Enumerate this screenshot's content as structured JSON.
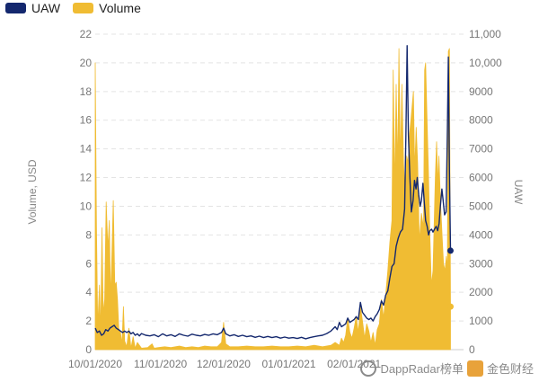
{
  "legend": {
    "uaw_label": "UAW",
    "volume_label": "Volume",
    "uaw_color": "#14286e",
    "volume_color": "#f0bc33"
  },
  "watermark": {
    "text": "DappRadar榜单",
    "brand": "金色财经"
  },
  "chart_data": {
    "type": "line",
    "title": "",
    "xlabel": "",
    "ylabel_left": "Volume, USD",
    "ylabel_right": "UAW",
    "y_left_range": [
      0,
      22
    ],
    "y_left_ticks": [
      0,
      2,
      4,
      6,
      8,
      10,
      12,
      14,
      16,
      18,
      20,
      22
    ],
    "y_right_range": [
      0,
      11000
    ],
    "y_right_ticks": [
      "0",
      "1000",
      "2000",
      "3000",
      "4000",
      "5000",
      "6000",
      "7000",
      "8000",
      "9000",
      "10,000",
      "11,000"
    ],
    "x_ticks": [
      {
        "day": 0,
        "label": "10/01/2020"
      },
      {
        "day": 31,
        "label": "11/01/2020"
      },
      {
        "day": 61,
        "label": "12/01/2020"
      },
      {
        "day": 92,
        "label": "01/01/2021"
      },
      {
        "day": 123,
        "label": "02/01/2021"
      }
    ],
    "x_range": [
      0,
      175
    ],
    "grid": true,
    "legend_position": "top-left",
    "series": [
      {
        "name": "Volume",
        "axis": "left",
        "style": "area",
        "color": "#f0bc33",
        "points": [
          [
            0,
            20.0
          ],
          [
            0.6,
            8.5
          ],
          [
            1.2,
            1.5
          ],
          [
            2,
            4.5
          ],
          [
            2.6,
            1.0
          ],
          [
            3.2,
            8.5
          ],
          [
            3.8,
            2.5
          ],
          [
            4.5,
            3.5
          ],
          [
            5.2,
            10.3
          ],
          [
            6,
            7.0
          ],
          [
            6.7,
            9.0
          ],
          [
            7.3,
            3.5
          ],
          [
            7.9,
            6.5
          ],
          [
            8.6,
            10.4
          ],
          [
            9.3,
            4.5
          ],
          [
            10,
            4.7
          ],
          [
            10.6,
            3.5
          ],
          [
            11.2,
            1.5
          ],
          [
            12,
            1.2
          ],
          [
            12.7,
            0.4
          ],
          [
            13.4,
            3.0
          ],
          [
            14,
            0.6
          ],
          [
            15,
            0.2
          ],
          [
            16,
            1.5
          ],
          [
            17,
            0.1
          ],
          [
            18,
            0.9
          ],
          [
            19,
            0.1
          ],
          [
            20,
            0.5
          ],
          [
            22,
            0.1
          ],
          [
            25,
            0.15
          ],
          [
            27,
            0.4
          ],
          [
            28,
            0.1
          ],
          [
            30,
            0.15
          ],
          [
            33,
            0.2
          ],
          [
            36,
            0.15
          ],
          [
            40,
            0.25
          ],
          [
            43,
            0.15
          ],
          [
            46,
            0.2
          ],
          [
            49,
            0.15
          ],
          [
            52,
            0.25
          ],
          [
            55,
            0.2
          ],
          [
            58,
            0.2
          ],
          [
            60,
            0.5
          ],
          [
            61,
            1.9
          ],
          [
            62,
            0.4
          ],
          [
            64,
            0.2
          ],
          [
            68,
            0.2
          ],
          [
            72,
            0.25
          ],
          [
            76,
            0.2
          ],
          [
            80,
            0.2
          ],
          [
            84,
            0.25
          ],
          [
            88,
            0.2
          ],
          [
            92,
            0.2
          ],
          [
            96,
            0.25
          ],
          [
            100,
            0.2
          ],
          [
            104,
            0.3
          ],
          [
            108,
            0.2
          ],
          [
            112,
            0.3
          ],
          [
            114,
            0.5
          ],
          [
            116,
            0.3
          ],
          [
            117,
            0.8
          ],
          [
            118,
            0.5
          ],
          [
            119,
            1.0
          ],
          [
            120,
            2.2
          ],
          [
            121,
            1.2
          ],
          [
            122,
            0.8
          ],
          [
            123,
            1.5
          ],
          [
            124,
            2.3
          ],
          [
            125,
            1.2
          ],
          [
            126,
            3.0
          ],
          [
            127,
            2.0
          ],
          [
            128,
            0.8
          ],
          [
            129,
            1.8
          ],
          [
            130,
            1.3
          ],
          [
            131,
            0.5
          ],
          [
            132,
            1.2
          ],
          [
            133,
            0.3
          ],
          [
            134,
            1.4
          ],
          [
            135,
            1.8
          ],
          [
            136,
            3.5
          ],
          [
            137,
            2.2
          ],
          [
            138,
            3.8
          ],
          [
            139,
            5.5
          ],
          [
            140,
            7.5
          ],
          [
            141,
            9.0
          ],
          [
            141.6,
            19.5
          ],
          [
            142.3,
            11.0
          ],
          [
            143,
            18.5
          ],
          [
            143.7,
            12.5
          ],
          [
            144.3,
            21.0
          ],
          [
            145,
            13.0
          ],
          [
            145.7,
            18.5
          ],
          [
            146.5,
            13.0
          ],
          [
            147.3,
            10.5
          ],
          [
            148,
            13.5
          ],
          [
            148.7,
            13.0
          ],
          [
            149.3,
            15.0
          ],
          [
            150,
            16.0
          ],
          [
            150.6,
            17.0
          ],
          [
            151.2,
            18.0
          ],
          [
            151.8,
            12.5
          ],
          [
            152.5,
            15.5
          ],
          [
            153.2,
            13.0
          ],
          [
            154,
            7.5
          ],
          [
            155,
            9.5
          ],
          [
            156,
            8.5
          ],
          [
            156.5,
            19.5
          ],
          [
            157,
            20.0
          ],
          [
            157.6,
            16.5
          ],
          [
            158.3,
            12.5
          ],
          [
            159,
            8.0
          ],
          [
            159.7,
            4.5
          ],
          [
            160.5,
            5.5
          ],
          [
            161.1,
            9.0
          ],
          [
            161.6,
            12.0
          ],
          [
            162.2,
            14.5
          ],
          [
            162.8,
            11.5
          ],
          [
            163.3,
            13.5
          ],
          [
            164,
            10.5
          ],
          [
            164.8,
            8.0
          ],
          [
            165.5,
            6.0
          ],
          [
            166.2,
            5.5
          ],
          [
            166.8,
            6.5
          ],
          [
            167.3,
            5.5
          ],
          [
            167.8,
            20.8
          ],
          [
            168.3,
            21.0
          ],
          [
            168.8,
            3.0
          ]
        ]
      },
      {
        "name": "UAW",
        "axis": "right",
        "style": "line",
        "color": "#14286e",
        "points": [
          [
            0,
            750
          ],
          [
            1,
            600
          ],
          [
            2,
            650
          ],
          [
            3,
            500
          ],
          [
            4,
            550
          ],
          [
            5,
            700
          ],
          [
            6,
            650
          ],
          [
            7,
            750
          ],
          [
            8,
            800
          ],
          [
            9,
            850
          ],
          [
            10,
            750
          ],
          [
            11,
            700
          ],
          [
            12,
            650
          ],
          [
            13,
            600
          ],
          [
            14,
            650
          ],
          [
            15,
            600
          ],
          [
            16,
            650
          ],
          [
            17,
            550
          ],
          [
            18,
            600
          ],
          [
            19,
            500
          ],
          [
            20,
            550
          ],
          [
            21,
            480
          ],
          [
            22,
            560
          ],
          [
            24,
            500
          ],
          [
            26,
            480
          ],
          [
            28,
            520
          ],
          [
            30,
            450
          ],
          [
            32,
            550
          ],
          [
            34,
            480
          ],
          [
            36,
            520
          ],
          [
            38,
            460
          ],
          [
            40,
            550
          ],
          [
            42,
            500
          ],
          [
            44,
            470
          ],
          [
            46,
            540
          ],
          [
            48,
            500
          ],
          [
            50,
            480
          ],
          [
            52,
            530
          ],
          [
            54,
            500
          ],
          [
            56,
            550
          ],
          [
            58,
            520
          ],
          [
            60,
            600
          ],
          [
            61,
            750
          ],
          [
            62,
            550
          ],
          [
            64,
            480
          ],
          [
            66,
            520
          ],
          [
            68,
            460
          ],
          [
            70,
            500
          ],
          [
            72,
            450
          ],
          [
            74,
            480
          ],
          [
            76,
            430
          ],
          [
            78,
            470
          ],
          [
            80,
            420
          ],
          [
            82,
            460
          ],
          [
            84,
            420
          ],
          [
            86,
            450
          ],
          [
            88,
            400
          ],
          [
            90,
            440
          ],
          [
            92,
            400
          ],
          [
            94,
            420
          ],
          [
            96,
            390
          ],
          [
            98,
            430
          ],
          [
            100,
            380
          ],
          [
            102,
            420
          ],
          [
            104,
            450
          ],
          [
            106,
            480
          ],
          [
            108,
            500
          ],
          [
            110,
            560
          ],
          [
            112,
            650
          ],
          [
            114,
            800
          ],
          [
            115,
            700
          ],
          [
            116,
            950
          ],
          [
            117,
            800
          ],
          [
            118,
            850
          ],
          [
            119,
            900
          ],
          [
            120,
            1100
          ],
          [
            121,
            950
          ],
          [
            122,
            1000
          ],
          [
            123,
            1050
          ],
          [
            124,
            1150
          ],
          [
            125,
            1050
          ],
          [
            126,
            1650
          ],
          [
            127,
            1300
          ],
          [
            128,
            1200
          ],
          [
            129,
            1100
          ],
          [
            130,
            1050
          ],
          [
            131,
            1100
          ],
          [
            132,
            1000
          ],
          [
            133,
            1150
          ],
          [
            134,
            1250
          ],
          [
            135,
            1400
          ],
          [
            136,
            1700
          ],
          [
            137,
            1550
          ],
          [
            138,
            1900
          ],
          [
            139,
            2050
          ],
          [
            140,
            2500
          ],
          [
            141,
            2900
          ],
          [
            142,
            3000
          ],
          [
            143,
            3600
          ],
          [
            144,
            3900
          ],
          [
            145,
            4100
          ],
          [
            146,
            4200
          ],
          [
            147,
            4900
          ],
          [
            147.6,
            7400
          ],
          [
            148.2,
            10600
          ],
          [
            148.8,
            7500
          ],
          [
            149.5,
            6000
          ],
          [
            150.2,
            4800
          ],
          [
            151,
            5200
          ],
          [
            151.7,
            5900
          ],
          [
            152.4,
            5600
          ],
          [
            153,
            6000
          ],
          [
            153.7,
            5400
          ],
          [
            154.4,
            5000
          ],
          [
            155,
            5200
          ],
          [
            155.7,
            5800
          ],
          [
            156.4,
            5100
          ],
          [
            157,
            4500
          ],
          [
            157.7,
            4300
          ],
          [
            158.4,
            4000
          ],
          [
            159,
            4150
          ],
          [
            159.8,
            4200
          ],
          [
            160.5,
            4100
          ],
          [
            161.2,
            4200
          ],
          [
            162,
            4300
          ],
          [
            162.7,
            4150
          ],
          [
            163.4,
            4400
          ],
          [
            164,
            5000
          ],
          [
            164.7,
            5600
          ],
          [
            165.3,
            5200
          ],
          [
            166,
            4700
          ],
          [
            166.7,
            4800
          ],
          [
            167.3,
            7600
          ],
          [
            167.8,
            10200
          ],
          [
            168.3,
            6200
          ],
          [
            168.8,
            3450
          ]
        ]
      }
    ]
  }
}
